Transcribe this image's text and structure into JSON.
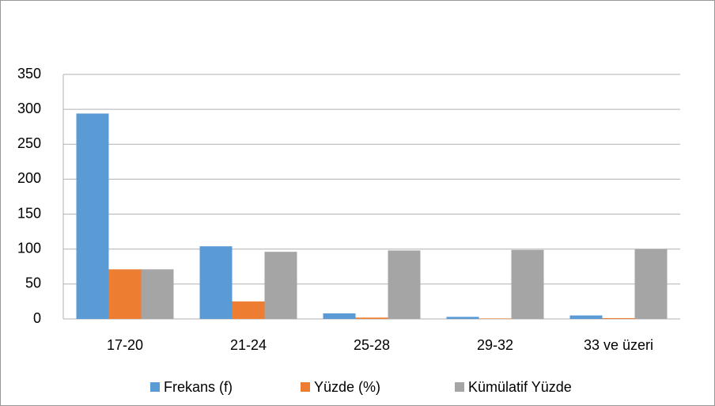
{
  "chart_data": {
    "type": "bar",
    "categories": [
      "17-20",
      "21-24",
      "25-28",
      "29-32",
      "33 ve üzeri"
    ],
    "series": [
      {
        "name": "Frekans (f)",
        "color": "#5b9bd5",
        "values": [
          294,
          104,
          8,
          3,
          5
        ]
      },
      {
        "name": "Yüzde (%)",
        "color": "#ed7d31",
        "values": [
          71,
          25.1,
          1.9,
          0.7,
          1.2
        ]
      },
      {
        "name": "Kümülatif Yüzde",
        "color": "#a5a5a5",
        "values": [
          71,
          96.1,
          98,
          98.8,
          100
        ]
      }
    ],
    "ylim": [
      0,
      350
    ],
    "yticks": [
      0,
      50,
      100,
      150,
      200,
      250,
      300,
      350
    ],
    "grid": true
  }
}
